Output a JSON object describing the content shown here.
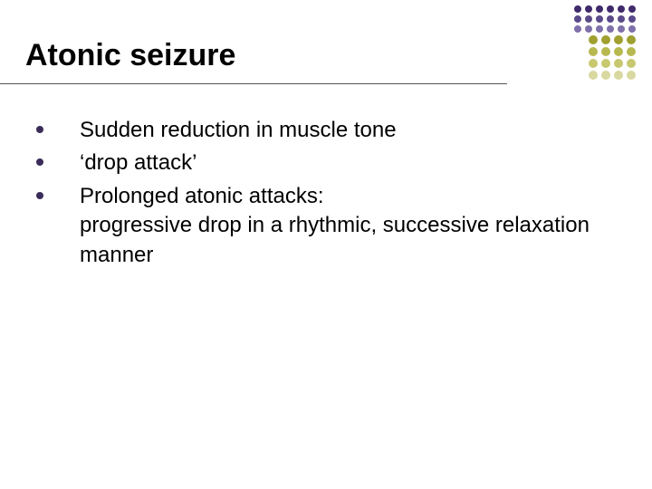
{
  "title": "Atonic seizure",
  "title_color": "#000000",
  "title_fontsize": 34,
  "underline_color": "#555555",
  "bullets": [
    "Sudden reduction in muscle tone",
    "‘drop attack’",
    "Prolonged atonic attacks:\nprogressive drop in a rhythmic,  successive relaxation manner"
  ],
  "bullet_color": "#3b2b5a",
  "body_fontsize": 24,
  "body_color": "#000000",
  "background_color": "#ffffff",
  "dot_grid": {
    "rows": [
      {
        "count": 6,
        "size": 8,
        "color": "#3f2a6b"
      },
      {
        "count": 6,
        "size": 8,
        "color": "#5a4a8a"
      },
      {
        "count": 6,
        "size": 8,
        "color": "#8070aa"
      },
      {
        "count": 4,
        "size": 10,
        "color": "#a0a030"
      },
      {
        "count": 4,
        "size": 10,
        "color": "#b8b850"
      },
      {
        "count": 4,
        "size": 10,
        "color": "#c8c870"
      },
      {
        "count": 4,
        "size": 10,
        "color": "#d8d8a0"
      }
    ]
  }
}
